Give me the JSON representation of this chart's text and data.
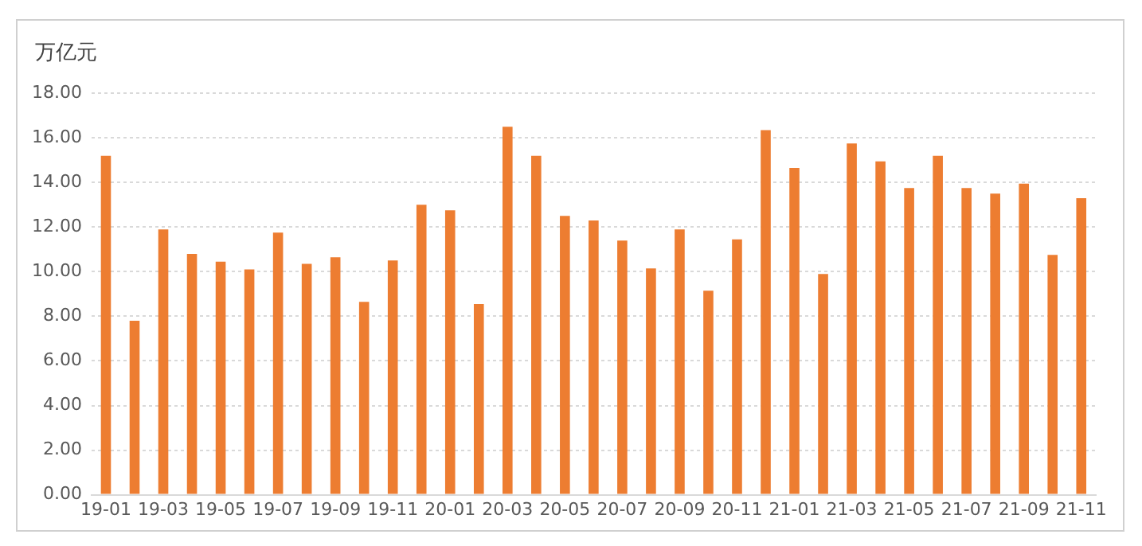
{
  "chart_data": {
    "type": "bar",
    "ylabel": "万亿元",
    "categories": [
      "19-01",
      null,
      "19-03",
      null,
      "19-05",
      null,
      "19-07",
      null,
      "19-09",
      null,
      "19-11",
      null,
      "20-01",
      null,
      "20-03",
      null,
      "20-05",
      null,
      "20-07",
      null,
      "20-09",
      null,
      "20-11",
      null,
      "21-01",
      null,
      "21-03",
      null,
      "21-05",
      null,
      "21-07",
      null,
      "21-09",
      null,
      "21-11"
    ],
    "values": [
      15.2,
      7.8,
      11.9,
      10.8,
      10.45,
      10.1,
      11.75,
      10.35,
      10.65,
      8.65,
      10.5,
      13.0,
      12.75,
      8.55,
      16.5,
      15.2,
      12.5,
      12.3,
      11.4,
      10.15,
      11.9,
      9.15,
      11.45,
      16.35,
      14.65,
      9.9,
      15.75,
      14.95,
      13.75,
      15.2,
      13.75,
      13.5,
      13.95,
      10.75,
      13.3
    ],
    "color": "#ed7d31",
    "ylim": [
      0,
      18
    ],
    "yticks": [
      {
        "value": 0,
        "label": "0.00"
      },
      {
        "value": 2,
        "label": "2.00"
      },
      {
        "value": 4,
        "label": "4.00"
      },
      {
        "value": 6,
        "label": "6.00"
      },
      {
        "value": 8,
        "label": "8.00"
      },
      {
        "value": 10,
        "label": "10.00"
      },
      {
        "value": 12,
        "label": "12.00"
      },
      {
        "value": 14,
        "label": "14.00"
      },
      {
        "value": 16,
        "label": "16.00"
      },
      {
        "value": 18,
        "label": "18.00"
      }
    ],
    "grid": "y",
    "legend": false
  }
}
